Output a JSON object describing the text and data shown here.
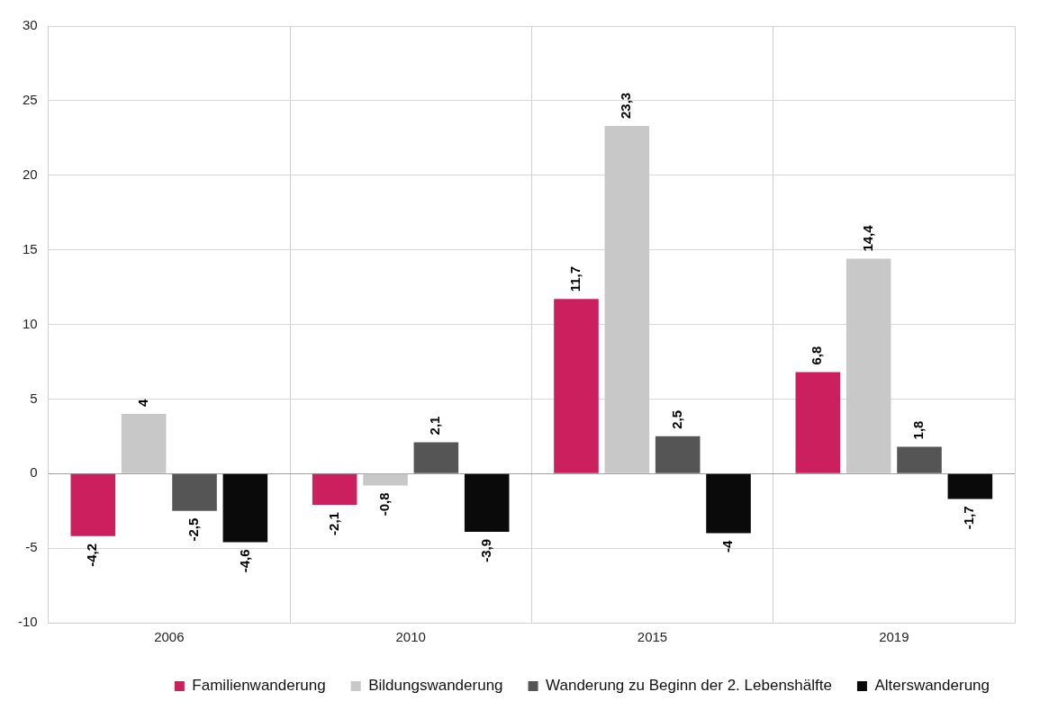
{
  "chart_data": {
    "type": "bar",
    "categories": [
      "2006",
      "2010",
      "2015",
      "2019"
    ],
    "series": [
      {
        "name": "Familienwanderung",
        "color": "#cc1f5d",
        "values": [
          -4.2,
          -2.1,
          11.7,
          6.8
        ],
        "value_labels": [
          "-4,2",
          "-2,1",
          "11,7",
          "6,8"
        ]
      },
      {
        "name": "Bildungswanderung",
        "color": "#c8c8c8",
        "values": [
          4,
          -0.8,
          23.3,
          14.4
        ],
        "value_labels": [
          "4",
          "-0,8",
          "23,3",
          "14,4"
        ]
      },
      {
        "name": "Wanderung zu Beginn der 2. Lebenshälfte",
        "color": "#555555",
        "values": [
          -2.5,
          2.1,
          2.5,
          1.8
        ],
        "value_labels": [
          "-2,5",
          "2,1",
          "2,5",
          "1,8"
        ]
      },
      {
        "name": "Alterswanderung",
        "color": "#0a0a0a",
        "values": [
          -4.6,
          -3.9,
          -4,
          -1.7
        ],
        "value_labels": [
          "-4,6",
          "-3,9",
          "-4",
          "-1,7"
        ]
      }
    ],
    "ylim": [
      -10,
      30
    ],
    "yticks": [
      -10,
      -5,
      0,
      5,
      10,
      15,
      20,
      25,
      30
    ],
    "grid": true,
    "legend": "bottom"
  }
}
